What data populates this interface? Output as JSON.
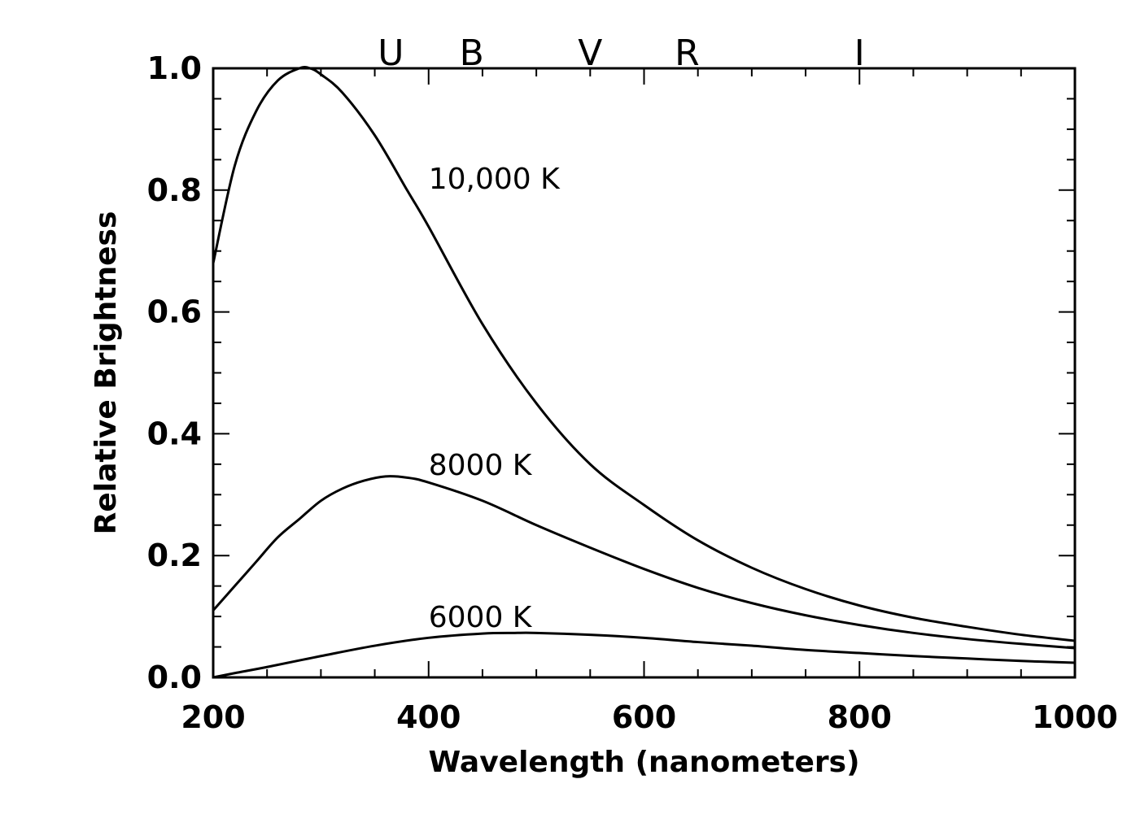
{
  "chart_data": {
    "type": "line",
    "xlabel": "Wavelength (nanometers)",
    "ylabel": "Relative Brightness",
    "xlim": [
      200,
      1000
    ],
    "ylim": [
      0.0,
      1.0
    ],
    "x_ticks": [
      "200",
      "400",
      "600",
      "800",
      "1000"
    ],
    "y_ticks": [
      "0.0",
      "0.2",
      "0.4",
      "0.6",
      "0.8",
      "1.0"
    ],
    "grid": false,
    "bands": [
      {
        "label": "U",
        "x": 365
      },
      {
        "label": "B",
        "x": 440
      },
      {
        "label": "V",
        "x": 550
      },
      {
        "label": "R",
        "x": 640
      },
      {
        "label": "I",
        "x": 800
      }
    ],
    "series": [
      {
        "name": "10,000 K",
        "label_at": [
          400,
          0.82
        ],
        "x": [
          200,
          220,
          240,
          260,
          280,
          290,
          300,
          320,
          350,
          380,
          400,
          450,
          500,
          550,
          600,
          650,
          700,
          750,
          800,
          850,
          900,
          950,
          1000
        ],
        "values": [
          0.68,
          0.84,
          0.93,
          0.98,
          1.0,
          1.0,
          0.99,
          0.96,
          0.89,
          0.8,
          0.74,
          0.58,
          0.45,
          0.35,
          0.283,
          0.225,
          0.18,
          0.145,
          0.118,
          0.098,
          0.083,
          0.07,
          0.06
        ]
      },
      {
        "name": "8000 K",
        "label_at": [
          400,
          0.35
        ],
        "x": [
          200,
          220,
          240,
          260,
          280,
          300,
          320,
          340,
          360,
          380,
          400,
          450,
          500,
          550,
          600,
          650,
          700,
          750,
          800,
          850,
          900,
          950,
          1000
        ],
        "values": [
          0.11,
          0.15,
          0.19,
          0.23,
          0.26,
          0.29,
          0.31,
          0.323,
          0.33,
          0.328,
          0.32,
          0.29,
          0.25,
          0.213,
          0.178,
          0.147,
          0.122,
          0.102,
          0.086,
          0.073,
          0.063,
          0.055,
          0.048
        ]
      },
      {
        "name": "6000 K",
        "label_at": [
          400,
          0.1
        ],
        "x": [
          200,
          220,
          250,
          300,
          350,
          400,
          450,
          480,
          500,
          550,
          600,
          650,
          700,
          750,
          800,
          850,
          900,
          950,
          1000
        ],
        "values": [
          0.0,
          0.007,
          0.017,
          0.035,
          0.052,
          0.065,
          0.072,
          0.073,
          0.073,
          0.07,
          0.065,
          0.058,
          0.052,
          0.045,
          0.04,
          0.035,
          0.031,
          0.027,
          0.024
        ]
      }
    ]
  }
}
